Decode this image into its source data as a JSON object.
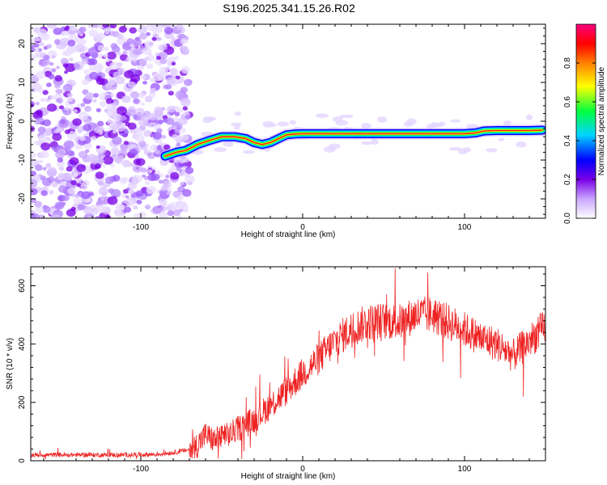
{
  "figure_title": "S196.2025.341.15.26.R02",
  "chart_data": [
    {
      "id": "spectrogram",
      "type": "heatmap",
      "xlabel": "Height of straight line (km)",
      "ylabel": "Frequency (Hz)",
      "xlim": [
        -168,
        150
      ],
      "ylim": [
        -25,
        25
      ],
      "xticks": [
        -100,
        0,
        100
      ],
      "yticks": [
        -20,
        -10,
        0,
        10,
        20
      ],
      "colorbar": {
        "label": "Normalized spectral amplitude",
        "range": [
          0,
          1
        ],
        "ticks": [
          0.0,
          0.2,
          0.4,
          0.6,
          0.8
        ],
        "tick_labels": [
          "0.0",
          "0.2",
          "0.4",
          "0.6",
          "0.8"
        ],
        "colormap": [
          "#ffffff",
          "#c9a6ff",
          "#7a00e6",
          "#0000ff",
          "#00d5ff",
          "#00ff40",
          "#ffff00",
          "#ff8000",
          "#ff0000",
          "#ff0080"
        ]
      },
      "noise_region_x": [
        -168,
        -73
      ],
      "signal_trace": {
        "x": [
          -85,
          -78,
          -72,
          -65,
          -58,
          -50,
          -42,
          -35,
          -30,
          -25,
          -20,
          -15,
          -10,
          -5,
          0,
          10,
          20,
          40,
          60,
          80,
          100,
          107,
          112,
          120,
          130,
          140,
          148
        ],
        "y": [
          -9,
          -8,
          -7.5,
          -6,
          -5,
          -4,
          -4,
          -4.5,
          -5.5,
          -6,
          -5.5,
          -4.5,
          -3.5,
          -3.3,
          -3.2,
          -3.2,
          -3.2,
          -3.2,
          -3.2,
          -3.2,
          -3.2,
          -3.0,
          -2.5,
          -2.4,
          -2.4,
          -2.4,
          -2.3
        ]
      }
    },
    {
      "id": "snr",
      "type": "line",
      "xlabel": "Height of straight line (km)",
      "ylabel": "SNR (10 * v/v)",
      "xlim": [
        -168,
        150
      ],
      "ylim": [
        0,
        665
      ],
      "xticks": [
        -100,
        0,
        100
      ],
      "yticks": [
        0,
        200,
        400,
        600
      ],
      "line_color": "#ee2222",
      "series": [
        {
          "name": "SNR",
          "x": [
            -168,
            -150,
            -130,
            -110,
            -90,
            -80,
            -70,
            -65,
            -60,
            -55,
            -50,
            -45,
            -40,
            -30,
            -20,
            -10,
            0,
            10,
            20,
            30,
            40,
            50,
            60,
            70,
            80,
            90,
            100,
            110,
            115,
            120,
            130,
            140,
            150
          ],
          "y": [
            20,
            20,
            20,
            20,
            22,
            28,
            38,
            55,
            90,
            70,
            80,
            90,
            110,
            140,
            190,
            240,
            300,
            350,
            410,
            450,
            475,
            480,
            475,
            500,
            500,
            475,
            450,
            420,
            410,
            400,
            360,
            410,
            460
          ]
        }
      ]
    }
  ]
}
